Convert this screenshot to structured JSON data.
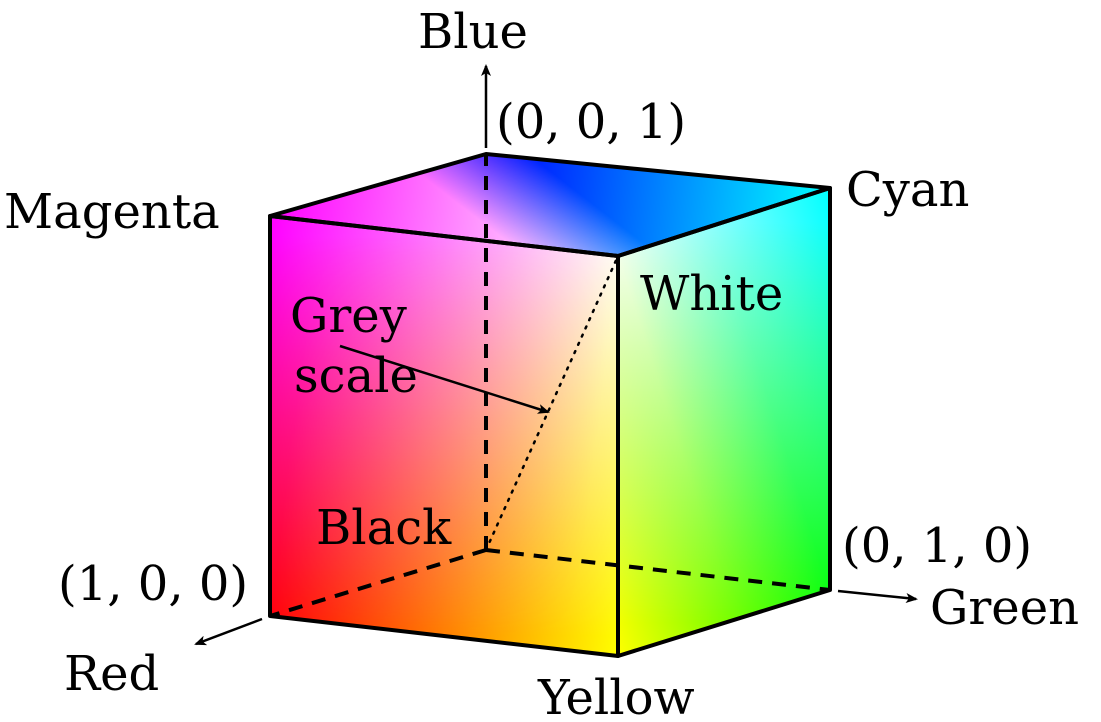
{
  "labels": {
    "blue": "Blue",
    "blue_coord": "(0, 0, 1)",
    "cyan": "Cyan",
    "magenta": "Magenta",
    "white": "White",
    "grey_line1": "Grey",
    "grey_line2": "scale",
    "black": "Black",
    "green_coord": "(0, 1, 0)",
    "green": "Green",
    "red_coord": "(1, 0, 0)",
    "red": "Red",
    "yellow": "Yellow"
  },
  "colors": {
    "black": "#000000",
    "red": "#FF0000",
    "green": "#00FF00",
    "blue": "#0000FF",
    "yellow": "#FFFF00",
    "cyan": "#00FFFF",
    "magenta": "#FF00FF",
    "white": "#FFFFFF"
  }
}
